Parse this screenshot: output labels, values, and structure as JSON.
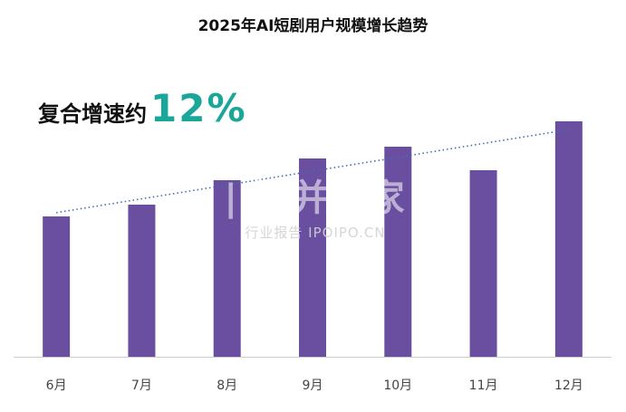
{
  "chart_data": {
    "type": "bar",
    "title": "2025年AI短剧用户规模增长趋势",
    "categories": [
      "6月",
      "7月",
      "8月",
      "9月",
      "10月",
      "11月",
      "12月"
    ],
    "values": [
      155,
      168,
      195,
      219,
      232,
      206,
      260
    ],
    "ylim": [
      0,
      260
    ],
    "xlabel": "",
    "ylabel": "",
    "grid": false,
    "trendline": "linear",
    "annotation": {
      "label": "复合增速约",
      "value": "12%"
    }
  },
  "watermark": {
    "brand": "|山|并购家",
    "tag": "行业报告 IPOIPO.CN"
  },
  "colors": {
    "bar": "#6a4fa0",
    "trendline": "#3f6fb5",
    "accent": "#1aa79a",
    "axis": "#cccccc"
  }
}
